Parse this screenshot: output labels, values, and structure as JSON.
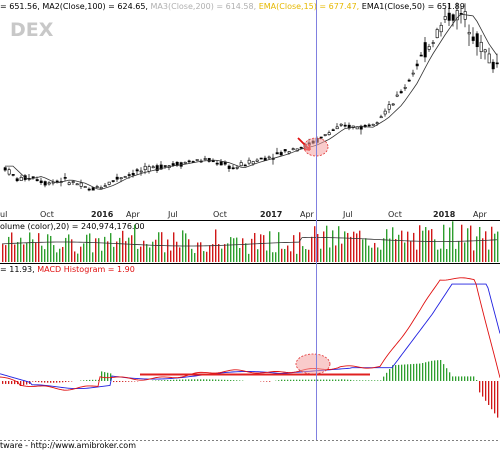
{
  "colors": {
    "candle": "#000000",
    "volume_up": "#2e9e2e",
    "volume_down": "#d01818",
    "ma_line": "#333333",
    "macd_line": "#e01010",
    "signal_line": "#2020e0",
    "histogram_up": "#2e9e2e",
    "histogram_down": "#d01818",
    "cursor": "#8080e0",
    "highlight_fill": "#f4a0a0",
    "highlight_stroke": "#e03030",
    "support_line": "#e02020",
    "arrow": "#e01010"
  },
  "price_panel": {
    "watermark": "DEX",
    "legend": [
      {
        "text": "= 651.56, ",
        "color": "#000000"
      },
      {
        "text": "MA2(Close,100) = 624.65, ",
        "color": "#000000"
      },
      {
        "text": "MA3(Close,200) = 614.58, ",
        "color": "#b0b0b0"
      },
      {
        "text": "EMA(Close,15) = 677.47, ",
        "color": "#e6b800"
      },
      {
        "text": "EMA1(Close,50) = 651.89",
        "color": "#000000"
      }
    ]
  },
  "volume_panel": {
    "legend": "olume (color),20) = 240,974,176.00"
  },
  "macd_panel": {
    "legend_prefix": "= 11.93, ",
    "legend_hist": "MACD Histogram = 1.90"
  },
  "x_axis": {
    "ticks": [
      "ul",
      "Oct",
      "2016",
      "Apr",
      "Jul",
      "Oct",
      "2017",
      "Apr",
      "Jul",
      "Oct",
      "2018",
      "Apr"
    ],
    "bold": [
      "2016",
      "2017",
      "2018"
    ]
  },
  "footer": "tware - http://www.amibroker.com",
  "chart_data": {
    "type": "candlestick",
    "indicators": [
      "volume",
      "MACD",
      "MACD Histogram"
    ],
    "grid": false,
    "price": [
      {
        "month": "2015-07",
        "value": 525
      },
      {
        "month": "2015-08",
        "value": 505
      },
      {
        "month": "2015-09",
        "value": 510
      },
      {
        "month": "2015-10",
        "value": 500
      },
      {
        "month": "2015-11",
        "value": 505
      },
      {
        "month": "2015-12",
        "value": 500
      },
      {
        "month": "2016-01",
        "value": 490
      },
      {
        "month": "2016-02",
        "value": 497
      },
      {
        "month": "2016-03",
        "value": 508
      },
      {
        "month": "2016-04",
        "value": 515
      },
      {
        "month": "2016-05",
        "value": 520
      },
      {
        "month": "2016-06",
        "value": 525
      },
      {
        "month": "2016-07",
        "value": 528
      },
      {
        "month": "2016-08",
        "value": 532
      },
      {
        "month": "2016-09",
        "value": 534
      },
      {
        "month": "2016-10",
        "value": 530
      },
      {
        "month": "2016-11",
        "value": 522
      },
      {
        "month": "2016-12",
        "value": 530
      },
      {
        "month": "2017-01",
        "value": 536
      },
      {
        "month": "2017-02",
        "value": 542
      },
      {
        "month": "2017-03",
        "value": 550
      },
      {
        "month": "2017-04",
        "value": 555
      },
      {
        "month": "2017-05",
        "value": 565
      },
      {
        "month": "2017-06",
        "value": 580
      },
      {
        "month": "2017-07",
        "value": 583
      },
      {
        "month": "2017-08",
        "value": 582
      },
      {
        "month": "2017-09",
        "value": 595
      },
      {
        "month": "2017-10",
        "value": 615
      },
      {
        "month": "2017-11",
        "value": 645
      },
      {
        "month": "2017-12",
        "value": 685
      },
      {
        "month": "2018-01",
        "value": 718
      },
      {
        "month": "2018-02",
        "value": 748
      },
      {
        "month": "2018-03",
        "value": 745
      },
      {
        "month": "2018-04",
        "value": 705
      },
      {
        "month": "2018-05",
        "value": 675
      }
    ]
  }
}
